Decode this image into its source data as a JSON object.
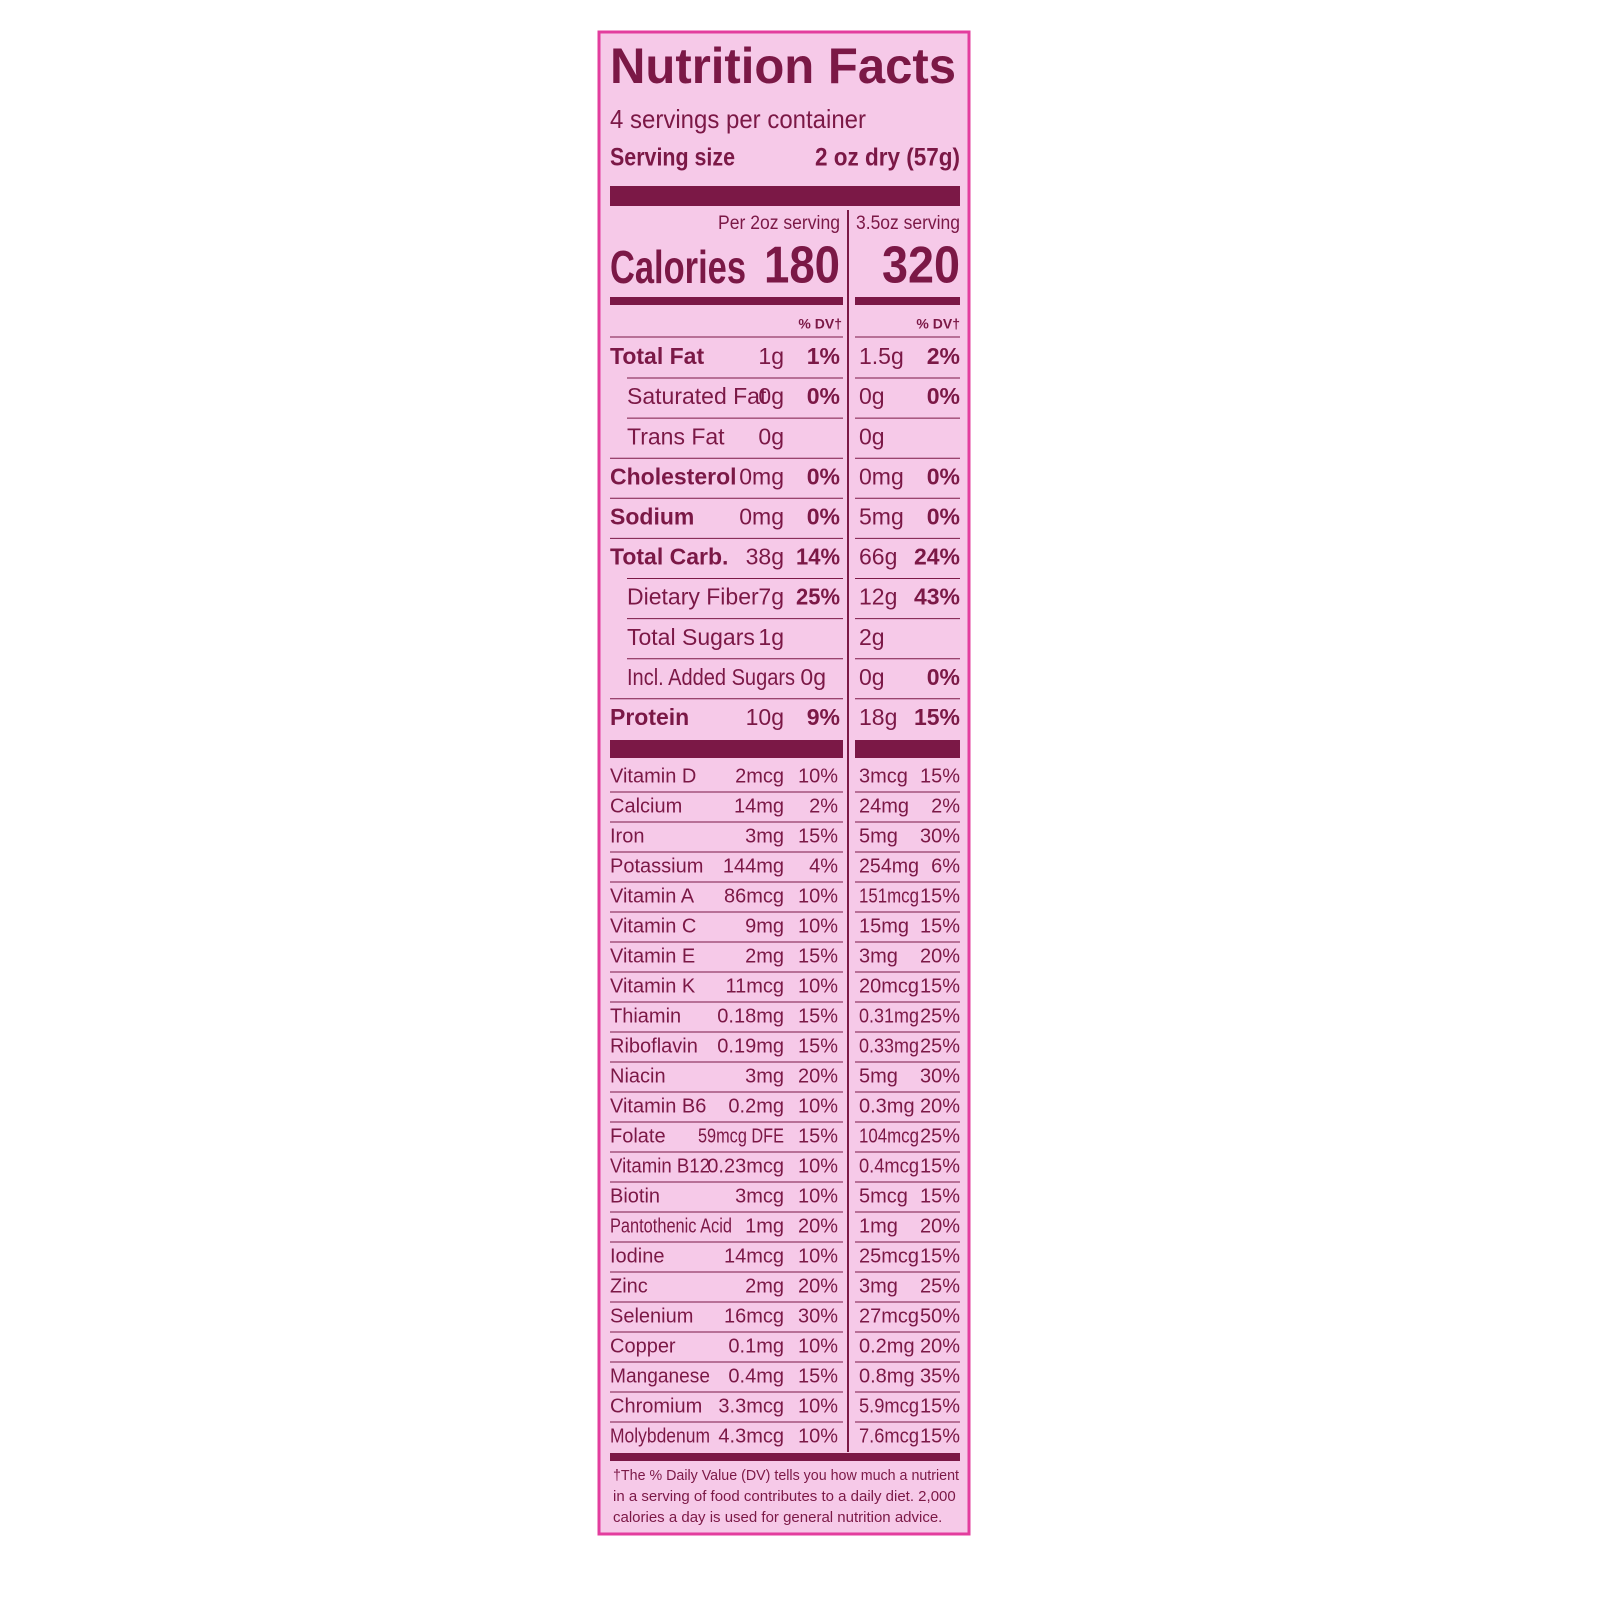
{
  "title": "Nutrition Facts",
  "servings": "4 servings per container",
  "serving_size": {
    "label": "Serving size",
    "value": "2 oz dry (57g)"
  },
  "columns": [
    "Per 2oz serving",
    "3.5oz serving"
  ],
  "calories": {
    "label": "Calories",
    "values": [
      "180",
      "320"
    ]
  },
  "dv_header": "% DV†",
  "nutrients": [
    {
      "name": "Total Fat",
      "bold": true,
      "amounts": [
        "1g",
        "1.5g"
      ],
      "dv": [
        "1%",
        "2%"
      ]
    },
    {
      "name": "Saturated Fat",
      "bold": false,
      "amounts": [
        "0g",
        "0g"
      ],
      "dv": [
        "0%",
        "0%"
      ]
    },
    {
      "name": "Trans Fat",
      "bold": false,
      "amounts": [
        "0g",
        "0g"
      ],
      "dv": [
        null,
        null
      ]
    },
    {
      "name": "Cholesterol",
      "bold": true,
      "amounts": [
        "0mg",
        "0mg"
      ],
      "dv": [
        "0%",
        "0%"
      ]
    },
    {
      "name": "Sodium",
      "bold": true,
      "amounts": [
        "0mg",
        "5mg"
      ],
      "dv": [
        "0%",
        "0%"
      ]
    },
    {
      "name": "Total Carb.",
      "bold": true,
      "amounts": [
        "38g",
        "66g"
      ],
      "dv": [
        "14%",
        "24%"
      ]
    },
    {
      "name": "Dietary Fiber",
      "bold": false,
      "amounts": [
        "7g",
        "12g"
      ],
      "dv": [
        "25%",
        "43%"
      ]
    },
    {
      "name": "Total Sugars",
      "bold": false,
      "amounts": [
        "1g",
        "2g"
      ],
      "dv": [
        null,
        null
      ]
    },
    {
      "name": "Incl. Added Sugars",
      "bold": false,
      "amounts": [
        "0g",
        "0g"
      ],
      "dv": [
        null,
        "0%"
      ]
    },
    {
      "name": "Protein",
      "bold": true,
      "amounts": [
        "10g",
        "18g"
      ],
      "dv": [
        "9%",
        "15%"
      ]
    }
  ],
  "vitamins": [
    {
      "name": "Vitamin D",
      "amounts": [
        "2mcg",
        "3mcg"
      ],
      "dv": [
        "10%",
        "15%"
      ]
    },
    {
      "name": "Calcium",
      "amounts": [
        "14mg",
        "24mg"
      ],
      "dv": [
        "2%",
        "2%"
      ]
    },
    {
      "name": "Iron",
      "amounts": [
        "3mg",
        "5mg"
      ],
      "dv": [
        "15%",
        "30%"
      ]
    },
    {
      "name": "Potassium",
      "amounts": [
        "144mg",
        "254mg"
      ],
      "dv": [
        "4%",
        "6%"
      ]
    },
    {
      "name": "Vitamin A",
      "amounts": [
        "86mcg",
        "151mcg"
      ],
      "dv": [
        "10%",
        "15%"
      ]
    },
    {
      "name": "Vitamin C",
      "amounts": [
        "9mg",
        "15mg"
      ],
      "dv": [
        "10%",
        "15%"
      ]
    },
    {
      "name": "Vitamin E",
      "amounts": [
        "2mg",
        "3mg"
      ],
      "dv": [
        "15%",
        "20%"
      ]
    },
    {
      "name": "Vitamin K",
      "amounts": [
        "11mcg",
        "20mcg"
      ],
      "dv": [
        "10%",
        "15%"
      ]
    },
    {
      "name": "Thiamin",
      "amounts": [
        "0.18mg",
        "0.31mg"
      ],
      "dv": [
        "15%",
        "25%"
      ]
    },
    {
      "name": "Riboflavin",
      "amounts": [
        "0.19mg",
        "0.33mg"
      ],
      "dv": [
        "15%",
        "25%"
      ]
    },
    {
      "name": "Niacin",
      "amounts": [
        "3mg",
        "5mg"
      ],
      "dv": [
        "20%",
        "30%"
      ]
    },
    {
      "name": "Vitamin B6",
      "amounts": [
        "0.2mg",
        "0.3mg"
      ],
      "dv": [
        "10%",
        "20%"
      ]
    },
    {
      "name": "Folate",
      "amounts": [
        "59mcg DFE",
        "104mcg"
      ],
      "dv": [
        "15%",
        "25%"
      ]
    },
    {
      "name": "Vitamin B12",
      "amounts": [
        "0.23mcg",
        "0.4mcg"
      ],
      "dv": [
        "10%",
        "15%"
      ]
    },
    {
      "name": "Biotin",
      "amounts": [
        "3mcg",
        "5mcg"
      ],
      "dv": [
        "10%",
        "15%"
      ]
    },
    {
      "name": "Pantothenic Acid",
      "amounts": [
        "1mg",
        "1mg"
      ],
      "dv": [
        "20%",
        "20%"
      ]
    },
    {
      "name": "Iodine",
      "amounts": [
        "14mcg",
        "25mcg"
      ],
      "dv": [
        "10%",
        "15%"
      ]
    },
    {
      "name": "Zinc",
      "amounts": [
        "2mg",
        "3mg"
      ],
      "dv": [
        "20%",
        "25%"
      ]
    },
    {
      "name": "Selenium",
      "amounts": [
        "16mcg",
        "27mcg"
      ],
      "dv": [
        "30%",
        "50%"
      ]
    },
    {
      "name": "Copper",
      "amounts": [
        "0.1mg",
        "0.2mg"
      ],
      "dv": [
        "10%",
        "20%"
      ]
    },
    {
      "name": "Manganese",
      "amounts": [
        "0.4mg",
        "0.8mg"
      ],
      "dv": [
        "15%",
        "35%"
      ]
    },
    {
      "name": "Chromium",
      "amounts": [
        "3.3mcg",
        "5.9mcg"
      ],
      "dv": [
        "10%",
        "15%"
      ]
    },
    {
      "name": "Molybdenum",
      "amounts": [
        "4.3mcg",
        "7.6mcg"
      ],
      "dv": [
        "10%",
        "15%"
      ]
    }
  ],
  "footnote": [
    "†The % Daily Value (DV) tells you how much a nutrient",
    "in a serving of  food contributes to a daily diet. 2,000",
    "calories a day is used for general nutrition advice."
  ]
}
